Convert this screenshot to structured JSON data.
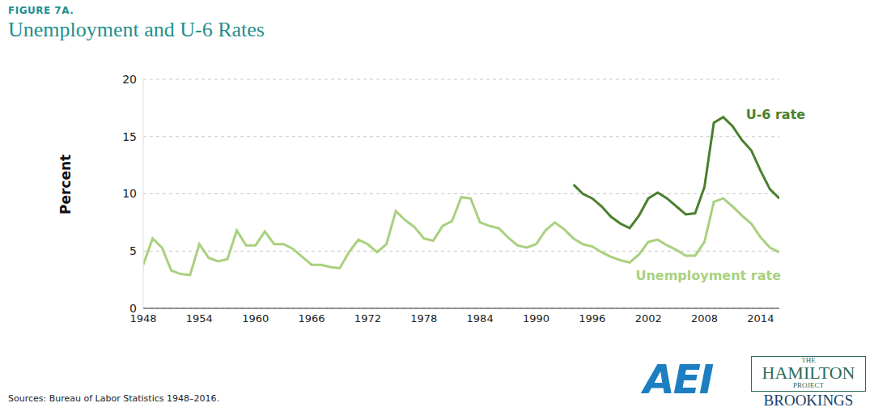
{
  "chart_data": {
    "type": "line",
    "kicker": "FIGURE 7A.",
    "title": "Unemployment and U-6 Rates",
    "y_label": "Percent",
    "source": "Sources: Bureau of Labor Statistics 1948–2016.",
    "logos": [
      "AEI",
      "THE",
      "HAMILTON",
      "PROJECT",
      "BROOKINGS"
    ],
    "x": [
      1948,
      1949,
      1950,
      1951,
      1952,
      1953,
      1954,
      1955,
      1956,
      1957,
      1958,
      1959,
      1960,
      1961,
      1962,
      1963,
      1964,
      1965,
      1966,
      1967,
      1968,
      1969,
      1970,
      1971,
      1972,
      1973,
      1974,
      1975,
      1976,
      1977,
      1978,
      1979,
      1980,
      1981,
      1982,
      1983,
      1984,
      1985,
      1986,
      1987,
      1988,
      1989,
      1990,
      1991,
      1992,
      1993,
      1994,
      1995,
      1996,
      1997,
      1998,
      1999,
      2000,
      2001,
      2002,
      2003,
      2004,
      2005,
      2006,
      2007,
      2008,
      2009,
      2010,
      2011,
      2012,
      2013,
      2014,
      2015,
      2016
    ],
    "series": [
      {
        "name": "Unemployment rate",
        "color": "#a8d17f",
        "values": [
          3.8,
          6.1,
          5.3,
          3.3,
          3.0,
          2.9,
          5.6,
          4.4,
          4.1,
          4.3,
          6.8,
          5.5,
          5.5,
          6.7,
          5.6,
          5.6,
          5.2,
          4.5,
          3.8,
          3.8,
          3.6,
          3.5,
          4.9,
          6.0,
          5.6,
          4.9,
          5.6,
          8.5,
          7.7,
          7.1,
          6.1,
          5.9,
          7.2,
          7.6,
          9.7,
          9.6,
          7.5,
          7.2,
          7.0,
          6.2,
          5.5,
          5.3,
          5.6,
          6.8,
          7.5,
          6.9,
          6.1,
          5.6,
          5.4,
          4.9,
          4.5,
          4.2,
          4.0,
          4.7,
          5.8,
          6.0,
          5.5,
          5.1,
          4.6,
          4.6,
          5.8,
          9.3,
          9.6,
          8.9,
          8.1,
          7.4,
          6.2,
          5.3,
          4.9
        ]
      },
      {
        "name": "U-6 rate",
        "color": "#4b7f2e",
        "values": [
          null,
          null,
          null,
          null,
          null,
          null,
          null,
          null,
          null,
          null,
          null,
          null,
          null,
          null,
          null,
          null,
          null,
          null,
          null,
          null,
          null,
          null,
          null,
          null,
          null,
          null,
          null,
          null,
          null,
          null,
          null,
          null,
          null,
          null,
          null,
          null,
          null,
          null,
          null,
          null,
          null,
          null,
          null,
          null,
          null,
          null,
          10.8,
          10.0,
          9.6,
          8.9,
          8.0,
          7.4,
          7.0,
          8.1,
          9.6,
          10.1,
          9.6,
          8.9,
          8.2,
          8.3,
          10.6,
          16.2,
          16.7,
          15.9,
          14.7,
          13.8,
          12.0,
          10.4,
          9.6
        ]
      }
    ],
    "xlim": [
      1948,
      2016
    ],
    "xticks": [
      1948,
      1954,
      1960,
      1966,
      1972,
      1978,
      1984,
      1990,
      1996,
      2002,
      2008,
      2014
    ],
    "ylim": [
      0,
      20
    ],
    "yticks": [
      0,
      5,
      10,
      15,
      20
    ],
    "grid": true
  }
}
